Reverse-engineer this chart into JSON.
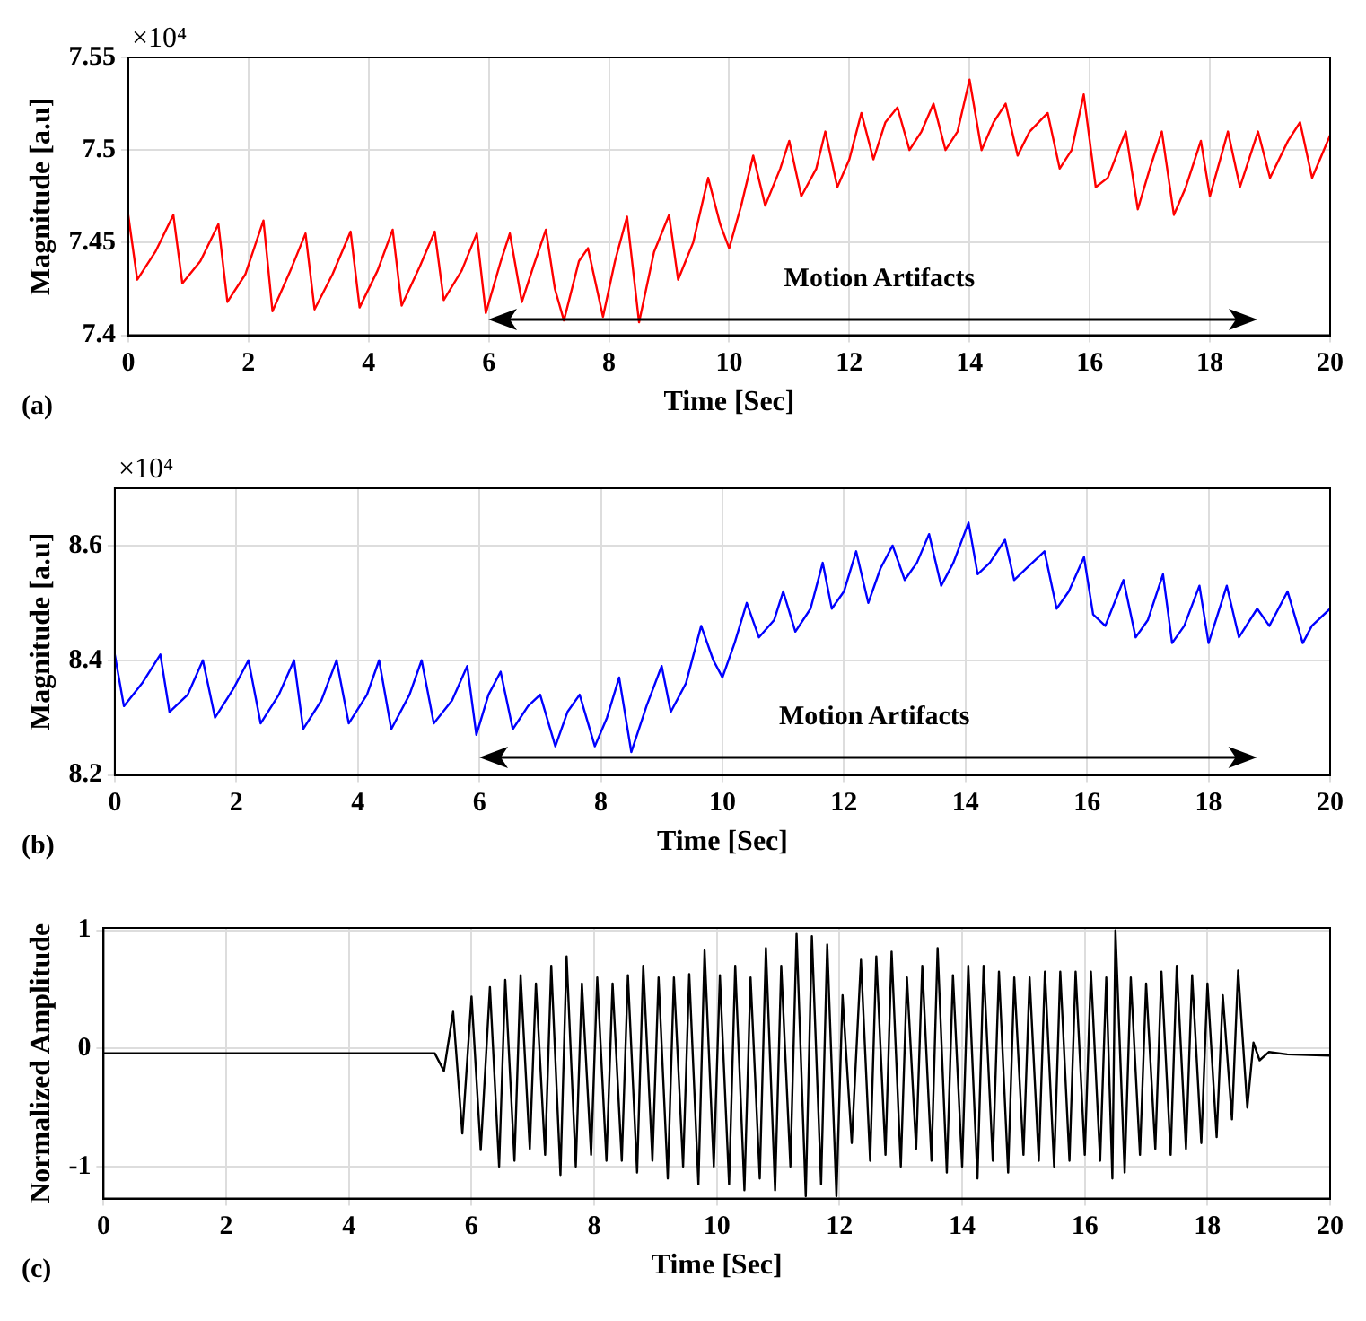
{
  "chart_data": [
    {
      "type": "line",
      "xlabel": "Time [Sec]",
      "ylabel": "Magnitude [a.u]",
      "x": [
        0,
        0.15,
        0.45,
        0.75,
        0.9,
        1.2,
        1.5,
        1.65,
        1.95,
        2.25,
        2.4,
        2.7,
        2.95,
        3.1,
        3.4,
        3.7,
        3.85,
        4.15,
        4.4,
        4.55,
        4.85,
        5.1,
        5.25,
        5.55,
        5.8,
        5.95,
        6.2,
        6.35,
        6.55,
        6.75,
        6.95,
        7.1,
        7.25,
        7.5,
        7.65,
        7.9,
        8.1,
        8.3,
        8.5,
        8.75,
        9.0,
        9.15,
        9.4,
        9.65,
        9.85,
        10.0,
        10.2,
        10.4,
        10.6,
        10.85,
        11.0,
        11.2,
        11.45,
        11.6,
        11.8,
        12.0,
        12.2,
        12.4,
        12.6,
        12.8,
        13.0,
        13.2,
        13.4,
        13.6,
        13.8,
        14.0,
        14.2,
        14.4,
        14.6,
        14.8,
        15.0,
        15.3,
        15.5,
        15.7,
        15.9,
        16.1,
        16.3,
        16.6,
        16.8,
        17.0,
        17.2,
        17.4,
        17.6,
        17.85,
        18.0,
        18.3,
        18.5,
        18.8,
        19.0,
        19.3,
        19.5,
        19.7,
        20
      ],
      "series": [
        {
          "color": "#ff0000",
          "values": [
            7.465,
            7.43,
            7.445,
            7.465,
            7.428,
            7.44,
            7.46,
            7.418,
            7.433,
            7.462,
            7.413,
            7.435,
            7.455,
            7.414,
            7.433,
            7.456,
            7.415,
            7.435,
            7.457,
            7.416,
            7.437,
            7.456,
            7.419,
            7.435,
            7.455,
            7.412,
            7.44,
            7.455,
            7.418,
            7.438,
            7.457,
            7.425,
            7.408,
            7.44,
            7.447,
            7.41,
            7.44,
            7.464,
            7.407,
            7.445,
            7.465,
            7.43,
            7.45,
            7.485,
            7.46,
            7.447,
            7.47,
            7.497,
            7.47,
            7.49,
            7.505,
            7.475,
            7.49,
            7.51,
            7.48,
            7.495,
            7.52,
            7.495,
            7.515,
            7.523,
            7.5,
            7.51,
            7.525,
            7.5,
            7.51,
            7.538,
            7.5,
            7.515,
            7.525,
            7.497,
            7.51,
            7.52,
            7.49,
            7.5,
            7.53,
            7.48,
            7.485,
            7.51,
            7.468,
            7.49,
            7.51,
            7.465,
            7.48,
            7.505,
            7.475,
            7.51,
            7.48,
            7.51,
            7.485,
            7.505,
            7.515,
            7.485,
            7.508
          ]
        }
      ],
      "xlim": [
        0,
        20
      ],
      "xticks": [
        0,
        2,
        4,
        6,
        8,
        10,
        12,
        14,
        16,
        18,
        20
      ],
      "ylim": [
        7.4,
        7.55
      ],
      "yticks": [
        7.4,
        7.45,
        7.5,
        7.55
      ],
      "grid": true,
      "annotations": [
        "×10⁴",
        "Motion Artifacts",
        "(a)"
      ]
    },
    {
      "type": "line",
      "xlabel": "Time [Sec]",
      "ylabel": "Magnitude [a.u]",
      "x": [
        0,
        0.15,
        0.45,
        0.75,
        0.9,
        1.2,
        1.45,
        1.65,
        1.95,
        2.2,
        2.4,
        2.7,
        2.95,
        3.1,
        3.4,
        3.65,
        3.85,
        4.15,
        4.35,
        4.55,
        4.85,
        5.05,
        5.25,
        5.55,
        5.8,
        5.95,
        6.15,
        6.35,
        6.55,
        6.8,
        7.0,
        7.25,
        7.45,
        7.65,
        7.9,
        8.1,
        8.3,
        8.5,
        8.75,
        9.0,
        9.15,
        9.4,
        9.65,
        9.85,
        10.0,
        10.2,
        10.4,
        10.6,
        10.85,
        11.0,
        11.2,
        11.45,
        11.65,
        11.8,
        12.0,
        12.2,
        12.4,
        12.6,
        12.8,
        13.0,
        13.2,
        13.4,
        13.6,
        13.8,
        14.05,
        14.2,
        14.4,
        14.65,
        14.8,
        15.0,
        15.3,
        15.5,
        15.7,
        15.95,
        16.1,
        16.3,
        16.6,
        16.8,
        17.0,
        17.25,
        17.4,
        17.6,
        17.85,
        18.0,
        18.3,
        18.5,
        18.8,
        19.0,
        19.3,
        19.55,
        19.7,
        20
      ],
      "series": [
        {
          "color": "#0000ff",
          "values": [
            8.41,
            8.32,
            8.36,
            8.41,
            8.31,
            8.34,
            8.4,
            8.3,
            8.35,
            8.4,
            8.29,
            8.34,
            8.4,
            8.28,
            8.33,
            8.4,
            8.29,
            8.34,
            8.4,
            8.28,
            8.34,
            8.4,
            8.29,
            8.33,
            8.39,
            8.27,
            8.34,
            8.38,
            8.28,
            8.32,
            8.34,
            8.25,
            8.31,
            8.34,
            8.25,
            8.3,
            8.37,
            8.24,
            8.32,
            8.39,
            8.31,
            8.36,
            8.46,
            8.4,
            8.37,
            8.43,
            8.5,
            8.44,
            8.47,
            8.52,
            8.45,
            8.49,
            8.57,
            8.49,
            8.52,
            8.59,
            8.5,
            8.56,
            8.6,
            8.54,
            8.57,
            8.62,
            8.53,
            8.57,
            8.64,
            8.55,
            8.57,
            8.61,
            8.54,
            8.56,
            8.59,
            8.49,
            8.52,
            8.58,
            8.48,
            8.46,
            8.54,
            8.44,
            8.47,
            8.55,
            8.43,
            8.46,
            8.53,
            8.43,
            8.53,
            8.44,
            8.49,
            8.46,
            8.52,
            8.43,
            8.46,
            8.49
          ]
        }
      ],
      "xlim": [
        0,
        20
      ],
      "xticks": [
        0,
        2,
        4,
        6,
        8,
        10,
        12,
        14,
        16,
        18,
        20
      ],
      "ylim": [
        8.2,
        8.7
      ],
      "yticks": [
        8.2,
        8.4,
        8.6
      ],
      "grid": true,
      "annotations": [
        "×10⁴",
        "Motion Artifacts",
        "(b)"
      ]
    },
    {
      "type": "line",
      "xlabel": "Time [Sec]",
      "ylabel": "Normalized Amplitude",
      "x": [
        0,
        1,
        2,
        3,
        4,
        5,
        5.4,
        5.55,
        5.7,
        5.85,
        6.0,
        6.15,
        6.3,
        6.45,
        6.55,
        6.7,
        6.8,
        6.95,
        7.05,
        7.2,
        7.3,
        7.45,
        7.55,
        7.7,
        7.8,
        7.95,
        8.05,
        8.2,
        8.3,
        8.45,
        8.55,
        8.7,
        8.8,
        8.95,
        9.05,
        9.2,
        9.3,
        9.45,
        9.55,
        9.7,
        9.8,
        9.95,
        10.05,
        10.2,
        10.3,
        10.45,
        10.55,
        10.7,
        10.8,
        10.95,
        11.05,
        11.2,
        11.3,
        11.45,
        11.55,
        11.7,
        11.8,
        11.95,
        12.05,
        12.2,
        12.35,
        12.5,
        12.6,
        12.75,
        12.85,
        13.0,
        13.1,
        13.25,
        13.35,
        13.5,
        13.6,
        13.75,
        13.85,
        14.0,
        14.1,
        14.25,
        14.35,
        14.5,
        14.6,
        14.75,
        14.85,
        15.0,
        15.1,
        15.25,
        15.35,
        15.5,
        15.6,
        15.75,
        15.85,
        16.0,
        16.1,
        16.25,
        16.35,
        16.45,
        16.5,
        16.65,
        16.75,
        16.9,
        17.0,
        17.15,
        17.25,
        17.4,
        17.5,
        17.65,
        17.75,
        17.9,
        18.0,
        18.15,
        18.25,
        18.4,
        18.5,
        18.65,
        18.75,
        18.85,
        19.0,
        19.3,
        20
      ],
      "series": [
        {
          "color": "#000000",
          "values": [
            -0.04,
            -0.04,
            -0.04,
            -0.04,
            -0.04,
            -0.04,
            -0.04,
            -0.19,
            0.31,
            -0.72,
            0.44,
            -0.86,
            0.52,
            -1.0,
            0.58,
            -0.95,
            0.62,
            -0.85,
            0.55,
            -0.9,
            0.7,
            -1.07,
            0.78,
            -1.0,
            0.55,
            -0.9,
            0.6,
            -0.95,
            0.55,
            -0.95,
            0.62,
            -1.05,
            0.7,
            -0.95,
            0.6,
            -1.1,
            0.6,
            -1.0,
            0.63,
            -1.15,
            0.83,
            -1.0,
            0.62,
            -1.15,
            0.7,
            -1.2,
            0.6,
            -1.1,
            0.85,
            -1.2,
            0.7,
            -1.0,
            0.97,
            -1.25,
            0.95,
            -1.15,
            0.88,
            -1.25,
            0.45,
            -0.8,
            0.75,
            -0.95,
            0.78,
            -0.9,
            0.82,
            -1.0,
            0.6,
            -0.85,
            0.7,
            -0.95,
            0.85,
            -1.05,
            0.62,
            -1.0,
            0.7,
            -1.1,
            0.7,
            -0.95,
            0.65,
            -1.05,
            0.6,
            -0.9,
            0.6,
            -0.95,
            0.65,
            -1.0,
            0.65,
            -0.95,
            0.65,
            -0.9,
            0.65,
            -0.95,
            0.6,
            -1.1,
            1.0,
            -1.05,
            0.6,
            -0.9,
            0.55,
            -0.85,
            0.65,
            -0.9,
            0.7,
            -0.85,
            0.62,
            -0.8,
            0.55,
            -0.75,
            0.45,
            -0.6,
            0.66,
            -0.5,
            0.05,
            -0.1,
            -0.03,
            -0.05,
            -0.06
          ]
        }
      ],
      "xlim": [
        0,
        20
      ],
      "xticks": [
        0,
        2,
        4,
        6,
        8,
        10,
        12,
        14,
        16,
        18,
        20
      ],
      "ylim": [
        -1.27,
        1.02
      ],
      "yticks": [
        -1,
        0,
        1
      ],
      "grid": true,
      "annotations": [
        "(c)"
      ]
    }
  ]
}
